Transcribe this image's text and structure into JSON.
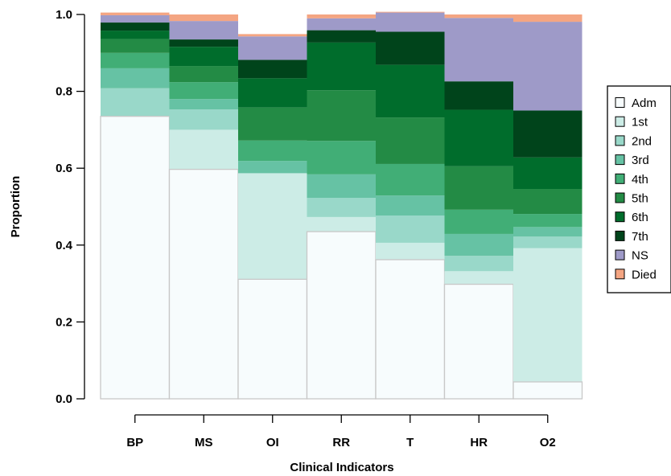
{
  "chart_data": {
    "type": "bar",
    "stacked": true,
    "xlabel": "Clinical Indicators",
    "ylabel": "Proportion",
    "ylim": [
      0,
      1
    ],
    "yticks": [
      "0.0",
      "0.2",
      "0.4",
      "0.6",
      "0.8",
      "1.0"
    ],
    "legend_placement": "right",
    "categories": [
      "BP",
      "MS",
      "OI",
      "RR",
      "T",
      "HR",
      "O2"
    ],
    "series": [
      {
        "name": "Adm",
        "color": "#f7fcfd",
        "values": [
          0.735,
          0.597,
          0.311,
          0.435,
          0.362,
          0.298,
          0.044
        ]
      },
      {
        "name": "1st",
        "color": "#ccece6",
        "values": [
          0.0,
          0.103,
          0.276,
          0.038,
          0.044,
          0.034,
          0.348
        ]
      },
      {
        "name": "2nd",
        "color": "#99d8c9",
        "values": [
          0.073,
          0.053,
          0.0,
          0.05,
          0.071,
          0.04,
          0.03
        ]
      },
      {
        "name": "3rd",
        "color": "#66c2a4",
        "values": [
          0.052,
          0.027,
          0.032,
          0.061,
          0.052,
          0.057,
          0.025
        ]
      },
      {
        "name": "4th",
        "color": "#41ae76",
        "values": [
          0.04,
          0.044,
          0.053,
          0.087,
          0.082,
          0.063,
          0.034
        ]
      },
      {
        "name": "5th",
        "color": "#238b45",
        "values": [
          0.036,
          0.042,
          0.086,
          0.132,
          0.121,
          0.113,
          0.065
        ]
      },
      {
        "name": "6th",
        "color": "#006d2c",
        "values": [
          0.022,
          0.05,
          0.076,
          0.124,
          0.137,
          0.147,
          0.082
        ]
      },
      {
        "name": "7th",
        "color": "#00441b",
        "values": [
          0.021,
          0.019,
          0.048,
          0.032,
          0.086,
          0.074,
          0.122
        ]
      },
      {
        "name": "NS",
        "color": "#9e9ac8",
        "values": [
          0.019,
          0.048,
          0.061,
          0.031,
          0.05,
          0.165,
          0.231
        ]
      },
      {
        "name": "Died",
        "color": "#f4a582",
        "values": [
          0.007,
          0.017,
          0.006,
          0.01,
          0.002,
          0.009,
          0.019
        ]
      }
    ]
  }
}
